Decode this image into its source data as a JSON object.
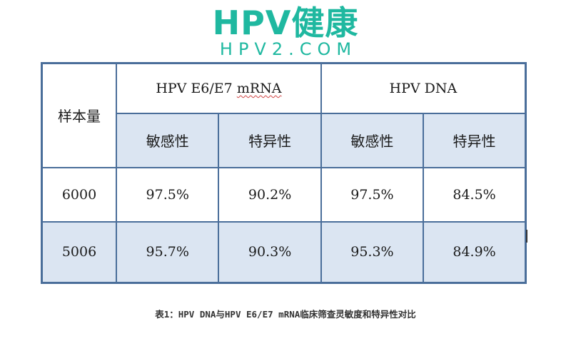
{
  "brand": {
    "name": "HPV健康",
    "domain": "HPV2.COM"
  },
  "table": {
    "corner_label": "样本量",
    "groups": [
      "HPV E6/E7 mRNA",
      "HPV DNA"
    ],
    "subheaders": [
      "敏感性",
      "特异性",
      "敏感性",
      "特异性"
    ],
    "rows": [
      {
        "sample": "6000",
        "values": [
          "97.5%",
          "90.2%",
          "97.5%",
          "84.5%"
        ]
      },
      {
        "sample": "5006",
        "values": [
          "95.7%",
          "90.3%",
          "95.3%",
          "84.9%"
        ]
      }
    ]
  },
  "caption": "表1：HPV DNA与HPV E6/E7 mRNA临床筛查灵敏度和特异性对比"
}
